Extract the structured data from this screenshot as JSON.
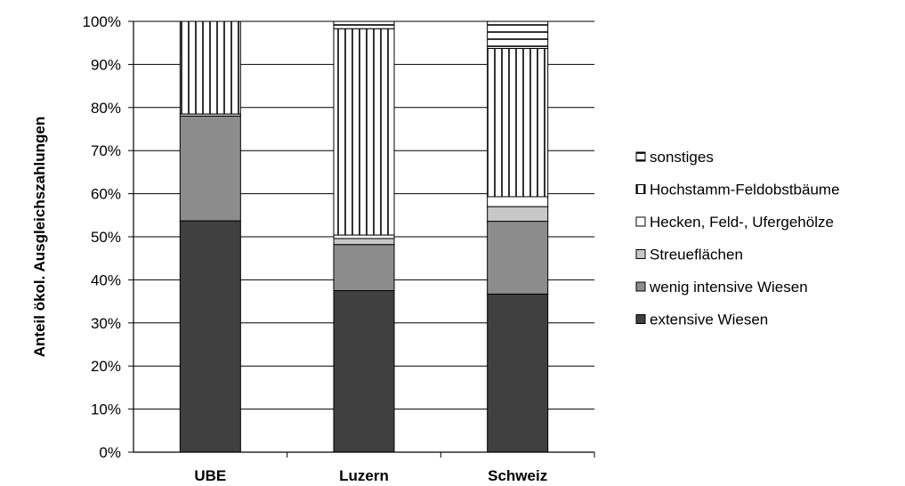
{
  "chart_data": {
    "type": "bar",
    "stacked": true,
    "percent": true,
    "title": "",
    "xlabel": "",
    "ylabel": "Anteil ökol. Ausgleichszahlungen",
    "ylim": [
      0,
      100
    ],
    "yticks": [
      "0%",
      "10%",
      "20%",
      "30%",
      "40%",
      "50%",
      "60%",
      "70%",
      "80%",
      "90%",
      "100%"
    ],
    "categories": [
      "UBE",
      "Luzern",
      "Schweiz"
    ],
    "grid": true,
    "legend_position": "right",
    "series": [
      {
        "name": "extensive Wiesen",
        "values": [
          53.7,
          37.5,
          36.7
        ],
        "color": "#404040",
        "pattern": "solid"
      },
      {
        "name": "wenig intensive Wiesen",
        "values": [
          24.3,
          10.7,
          16.9
        ],
        "color": "#8c8c8c",
        "pattern": "solid"
      },
      {
        "name": "Streueflächen",
        "values": [
          0.5,
          1.4,
          3.4
        ],
        "color": "#c8c8c8",
        "pattern": "solid"
      },
      {
        "name": "Hecken, Feld-, Ufergehölze",
        "values": [
          0.0,
          0.8,
          2.3
        ],
        "color": "#ffffff",
        "pattern": "solid"
      },
      {
        "name": "Hochstamm-Feldobstbäume",
        "values": [
          21.5,
          47.9,
          34.4
        ],
        "color": "#ffffff",
        "pattern": "vertical"
      },
      {
        "name": "sonstiges",
        "values": [
          0.0,
          1.7,
          6.3
        ],
        "color": "#ffffff",
        "pattern": "horizontal"
      }
    ]
  }
}
